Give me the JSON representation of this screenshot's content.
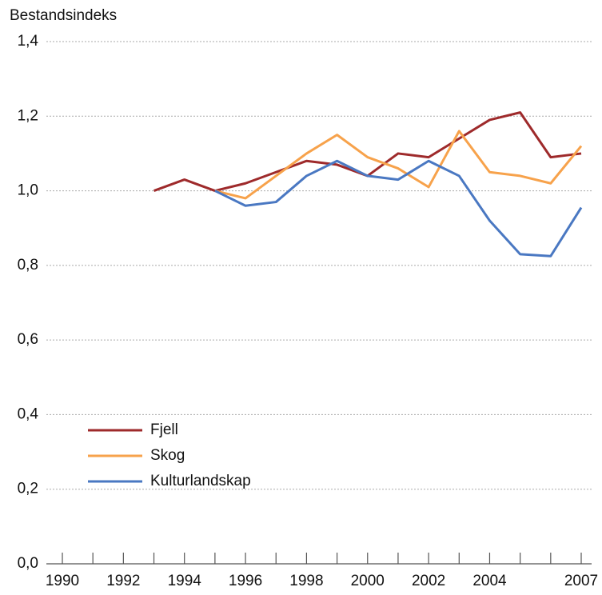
{
  "chart_data": {
    "type": "line",
    "y_label": "Bestandsindeks",
    "x": [
      1993,
      1994,
      1995,
      1996,
      1997,
      1998,
      1999,
      2000,
      2001,
      2002,
      2003,
      2004,
      2005,
      2006,
      2007
    ],
    "series": [
      {
        "name": "Fjell",
        "color": "#9e2a2b",
        "values": [
          1.0,
          1.03,
          1.0,
          1.02,
          1.05,
          1.08,
          1.07,
          1.04,
          1.1,
          1.09,
          1.14,
          1.19,
          1.21,
          1.09,
          1.1
        ]
      },
      {
        "name": "Skog",
        "color": "#f7a24b",
        "values": [
          null,
          null,
          1.0,
          0.98,
          1.04,
          1.1,
          1.15,
          1.09,
          1.06,
          1.01,
          1.16,
          1.05,
          1.04,
          1.02,
          1.12
        ]
      },
      {
        "name": "Kulturlandskap",
        "color": "#4a78c2",
        "values": [
          null,
          null,
          1.0,
          0.96,
          0.97,
          1.04,
          1.08,
          1.04,
          1.03,
          1.08,
          1.04,
          0.92,
          0.83,
          0.825,
          0.955
        ]
      }
    ],
    "xlim": [
      1990,
      2007
    ],
    "xticks": [
      1990,
      1992,
      1994,
      1996,
      1998,
      2000,
      2002,
      2004,
      2007
    ],
    "xminorticks": [
      1990,
      1991,
      1992,
      1993,
      1994,
      1995,
      1996,
      1997,
      1998,
      1999,
      2000,
      2001,
      2002,
      2003,
      2004,
      2005,
      2006,
      2007
    ],
    "ylim": [
      0,
      1.4
    ],
    "yticks": [
      {
        "value": 0,
        "label": "0,0"
      },
      {
        "value": 0.2,
        "label": "0,2"
      },
      {
        "value": 0.4,
        "label": "0,4"
      },
      {
        "value": 0.6,
        "label": "0,6"
      },
      {
        "value": 0.8,
        "label": "0,8"
      },
      {
        "value": 1.0,
        "label": "1,0"
      },
      {
        "value": 1.2,
        "label": "1,2"
      },
      {
        "value": 1.4,
        "label": "1,4"
      }
    ],
    "grid": true,
    "legend": "lower left"
  }
}
